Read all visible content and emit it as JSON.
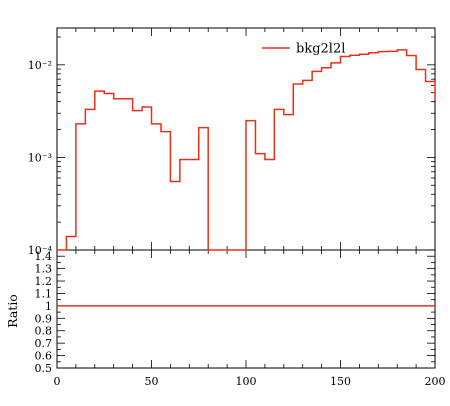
{
  "chart_data": [
    {
      "type": "line",
      "drawstyle": "steps",
      "yscale": "log",
      "xlim": [
        0,
        200
      ],
      "ylim": [
        0.0001,
        0.025
      ],
      "y_ticks": [
        {
          "value": 0.0001,
          "label": "10⁻⁴"
        },
        {
          "value": 0.001,
          "label": "10⁻³"
        },
        {
          "value": 0.01,
          "label": "10⁻²"
        }
      ],
      "legend": {
        "position": "top-right"
      },
      "series": [
        {
          "name": "bkg2l2l",
          "color": "#e8301f",
          "bin_edges": [
            0,
            5,
            10,
            15,
            20,
            25,
            30,
            35,
            40,
            45,
            50,
            55,
            60,
            65,
            70,
            75,
            80,
            85,
            90,
            95,
            100,
            105,
            110,
            115,
            120,
            125,
            130,
            135,
            140,
            145,
            150,
            155,
            160,
            165,
            170,
            175,
            180,
            185,
            190,
            195,
            200
          ],
          "values": [
            9e-05,
            0.00014,
            0.0023,
            0.0033,
            0.0052,
            0.0049,
            0.0043,
            0.0043,
            0.0032,
            0.0035,
            0.0023,
            0.0019,
            0.00055,
            0.00095,
            0.00095,
            0.0021,
            1e-05,
            1e-05,
            1e-05,
            1e-05,
            0.0025,
            0.0011,
            0.00095,
            0.0033,
            0.0029,
            0.0062,
            0.0068,
            0.0085,
            0.0093,
            0.0105,
            0.0123,
            0.0127,
            0.013,
            0.0135,
            0.0139,
            0.014,
            0.0145,
            0.0126,
            0.0089,
            0.0066,
            0.0042
          ]
        }
      ]
    },
    {
      "type": "line",
      "ylabel": "Ratio",
      "xlim": [
        0,
        200
      ],
      "ylim": [
        0.5,
        1.45
      ],
      "x_ticks": [
        0,
        50,
        100,
        150,
        200
      ],
      "y_ticks": [
        "0.5",
        "0.6",
        "0.7",
        "0.8",
        "0.9",
        "1",
        "1.1",
        "1.2",
        "1.3",
        "1.4"
      ],
      "series": [
        {
          "color": "#e8301f",
          "x": [
            0,
            200
          ],
          "y": [
            1,
            1
          ]
        }
      ]
    }
  ]
}
